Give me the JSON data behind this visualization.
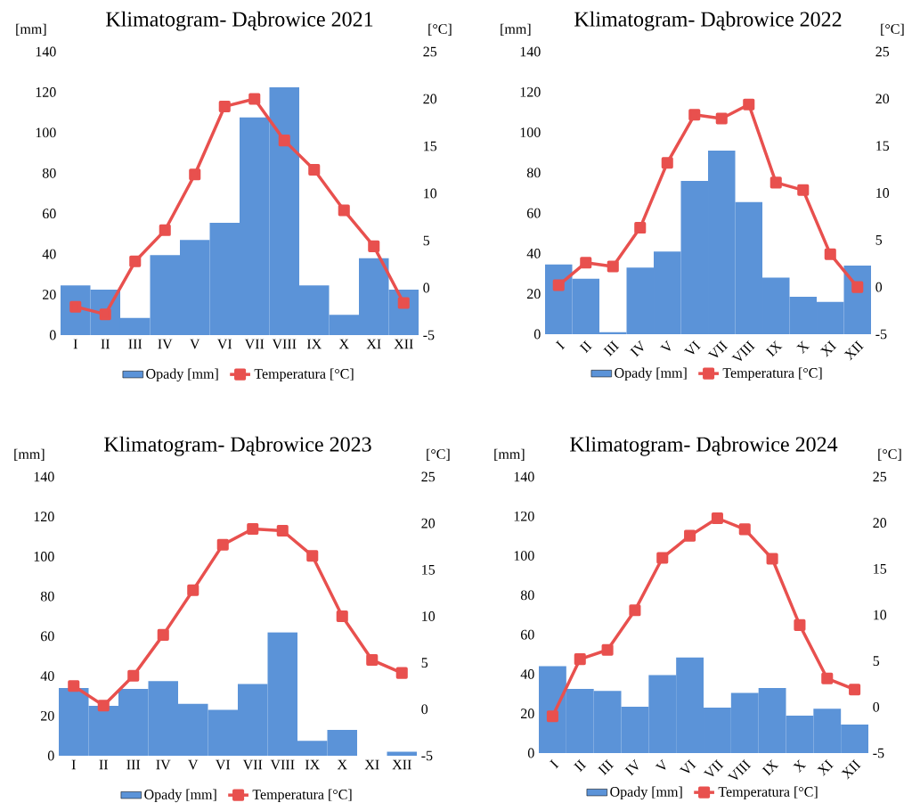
{
  "chart_data": [
    {
      "type": "bar",
      "title": "Klimatogram- Dąbrowice 2021",
      "ylabel": "[mm]",
      "y2label": "[°C]",
      "categories": [
        "I",
        "II",
        "III",
        "IV",
        "V",
        "VI",
        "VII",
        "VIII",
        "IX",
        "X",
        "XI",
        "XII"
      ],
      "ylim": [
        0,
        140
      ],
      "yticks": [
        0,
        20,
        40,
        60,
        80,
        100,
        120,
        140
      ],
      "y2lim": [
        -5,
        25
      ],
      "y2ticks": [
        -5,
        0,
        5,
        10,
        15,
        20,
        25
      ],
      "legend": "bottom",
      "series": [
        {
          "name": "Opady [mm]",
          "color": "#5b93d8",
          "values": [
            24.5,
            22.5,
            8.5,
            39.5,
            47,
            55.5,
            107.5,
            122.5,
            24.5,
            10,
            38,
            22.5
          ]
        },
        {
          "name": "Temperatura [°C]",
          "type": "line",
          "axis": "y2",
          "marker": "square",
          "color": "#e8504e",
          "values": [
            -2,
            -2.8,
            2.8,
            6.1,
            12,
            19.2,
            20,
            15.6,
            12.5,
            8.2,
            4.4,
            -1.6
          ]
        }
      ]
    },
    {
      "type": "bar",
      "title": "Klimatogram- Dąbrowice 2022",
      "ylabel": "[mm]",
      "y2label": "[°C]",
      "categories": [
        "I",
        "II",
        "III",
        "IV",
        "V",
        "VI",
        "VII",
        "VIII",
        "IX",
        "X",
        "XI",
        "XII"
      ],
      "ylim": [
        0,
        140
      ],
      "yticks": [
        0,
        20,
        40,
        60,
        80,
        100,
        120,
        140
      ],
      "y2lim": [
        -5,
        25
      ],
      "y2ticks": [
        -5,
        0,
        5,
        10,
        15,
        20,
        25
      ],
      "legend": "bottom",
      "series": [
        {
          "name": "Opady [mm]",
          "color": "#5b93d8",
          "values": [
            34.5,
            27.5,
            1,
            33,
            41,
            76,
            91,
            65.5,
            28,
            18.5,
            16,
            34
          ]
        },
        {
          "name": "Temperatura [°C]",
          "type": "line",
          "axis": "y2",
          "marker": "square",
          "color": "#e8504e",
          "values": [
            0.2,
            2.6,
            2.2,
            6.3,
            13.2,
            18.3,
            17.9,
            19.4,
            11.1,
            10.3,
            3.5,
            0
          ]
        }
      ]
    },
    {
      "type": "bar",
      "title": "Klimatogram- Dąbrowice 2023",
      "ylabel": "[mm]",
      "y2label": "[°C]",
      "categories": [
        "I",
        "II",
        "III",
        "IV",
        "V",
        "VI",
        "VII",
        "VIII",
        "IX",
        "X",
        "XI",
        "XII"
      ],
      "ylim": [
        0,
        140
      ],
      "yticks": [
        0,
        20,
        40,
        60,
        80,
        100,
        120,
        140
      ],
      "y2lim": [
        -5,
        25
      ],
      "y2ticks": [
        -5,
        0,
        5,
        10,
        15,
        20,
        25
      ],
      "legend": "bottom",
      "series": [
        {
          "name": "Opady [mm]",
          "color": "#5b93d8",
          "values": [
            34,
            25,
            33.5,
            37.5,
            26,
            23,
            36,
            62,
            7.5,
            13,
            null,
            2
          ]
        },
        {
          "name": "Temperatura [°C]",
          "type": "line",
          "axis": "y2",
          "marker": "square",
          "color": "#e8504e",
          "values": [
            2.5,
            0.4,
            3.6,
            8,
            12.8,
            17.7,
            19.4,
            19.2,
            16.5,
            10,
            5.3,
            3.9
          ]
        }
      ]
    },
    {
      "type": "bar",
      "title": "Klimatogram- Dąbrowice 2024",
      "ylabel": "[mm]",
      "y2label": "[°C]",
      "categories": [
        "I",
        "II",
        "III",
        "IV",
        "V",
        "VI",
        "VII",
        "VIII",
        "IX",
        "X",
        "XI",
        "XII"
      ],
      "ylim": [
        0,
        140
      ],
      "yticks": [
        0,
        20,
        40,
        60,
        80,
        100,
        120,
        140
      ],
      "y2lim": [
        -5,
        25
      ],
      "y2ticks": [
        -5,
        0,
        5,
        10,
        15,
        20,
        25
      ],
      "legend": "bottom",
      "series": [
        {
          "name": "Opady [mm]",
          "color": "#5b93d8",
          "values": [
            44,
            32.5,
            31.5,
            23.5,
            39.5,
            48.5,
            23,
            30.5,
            33,
            19,
            22.5,
            14.5
          ]
        },
        {
          "name": "Temperatura [°C]",
          "type": "line",
          "axis": "y2",
          "marker": "square",
          "color": "#e8504e",
          "values": [
            -1,
            5.2,
            6.2,
            10.5,
            16.2,
            18.6,
            20.5,
            19.3,
            16.1,
            8.9,
            3.1,
            1.9
          ]
        }
      ]
    }
  ]
}
